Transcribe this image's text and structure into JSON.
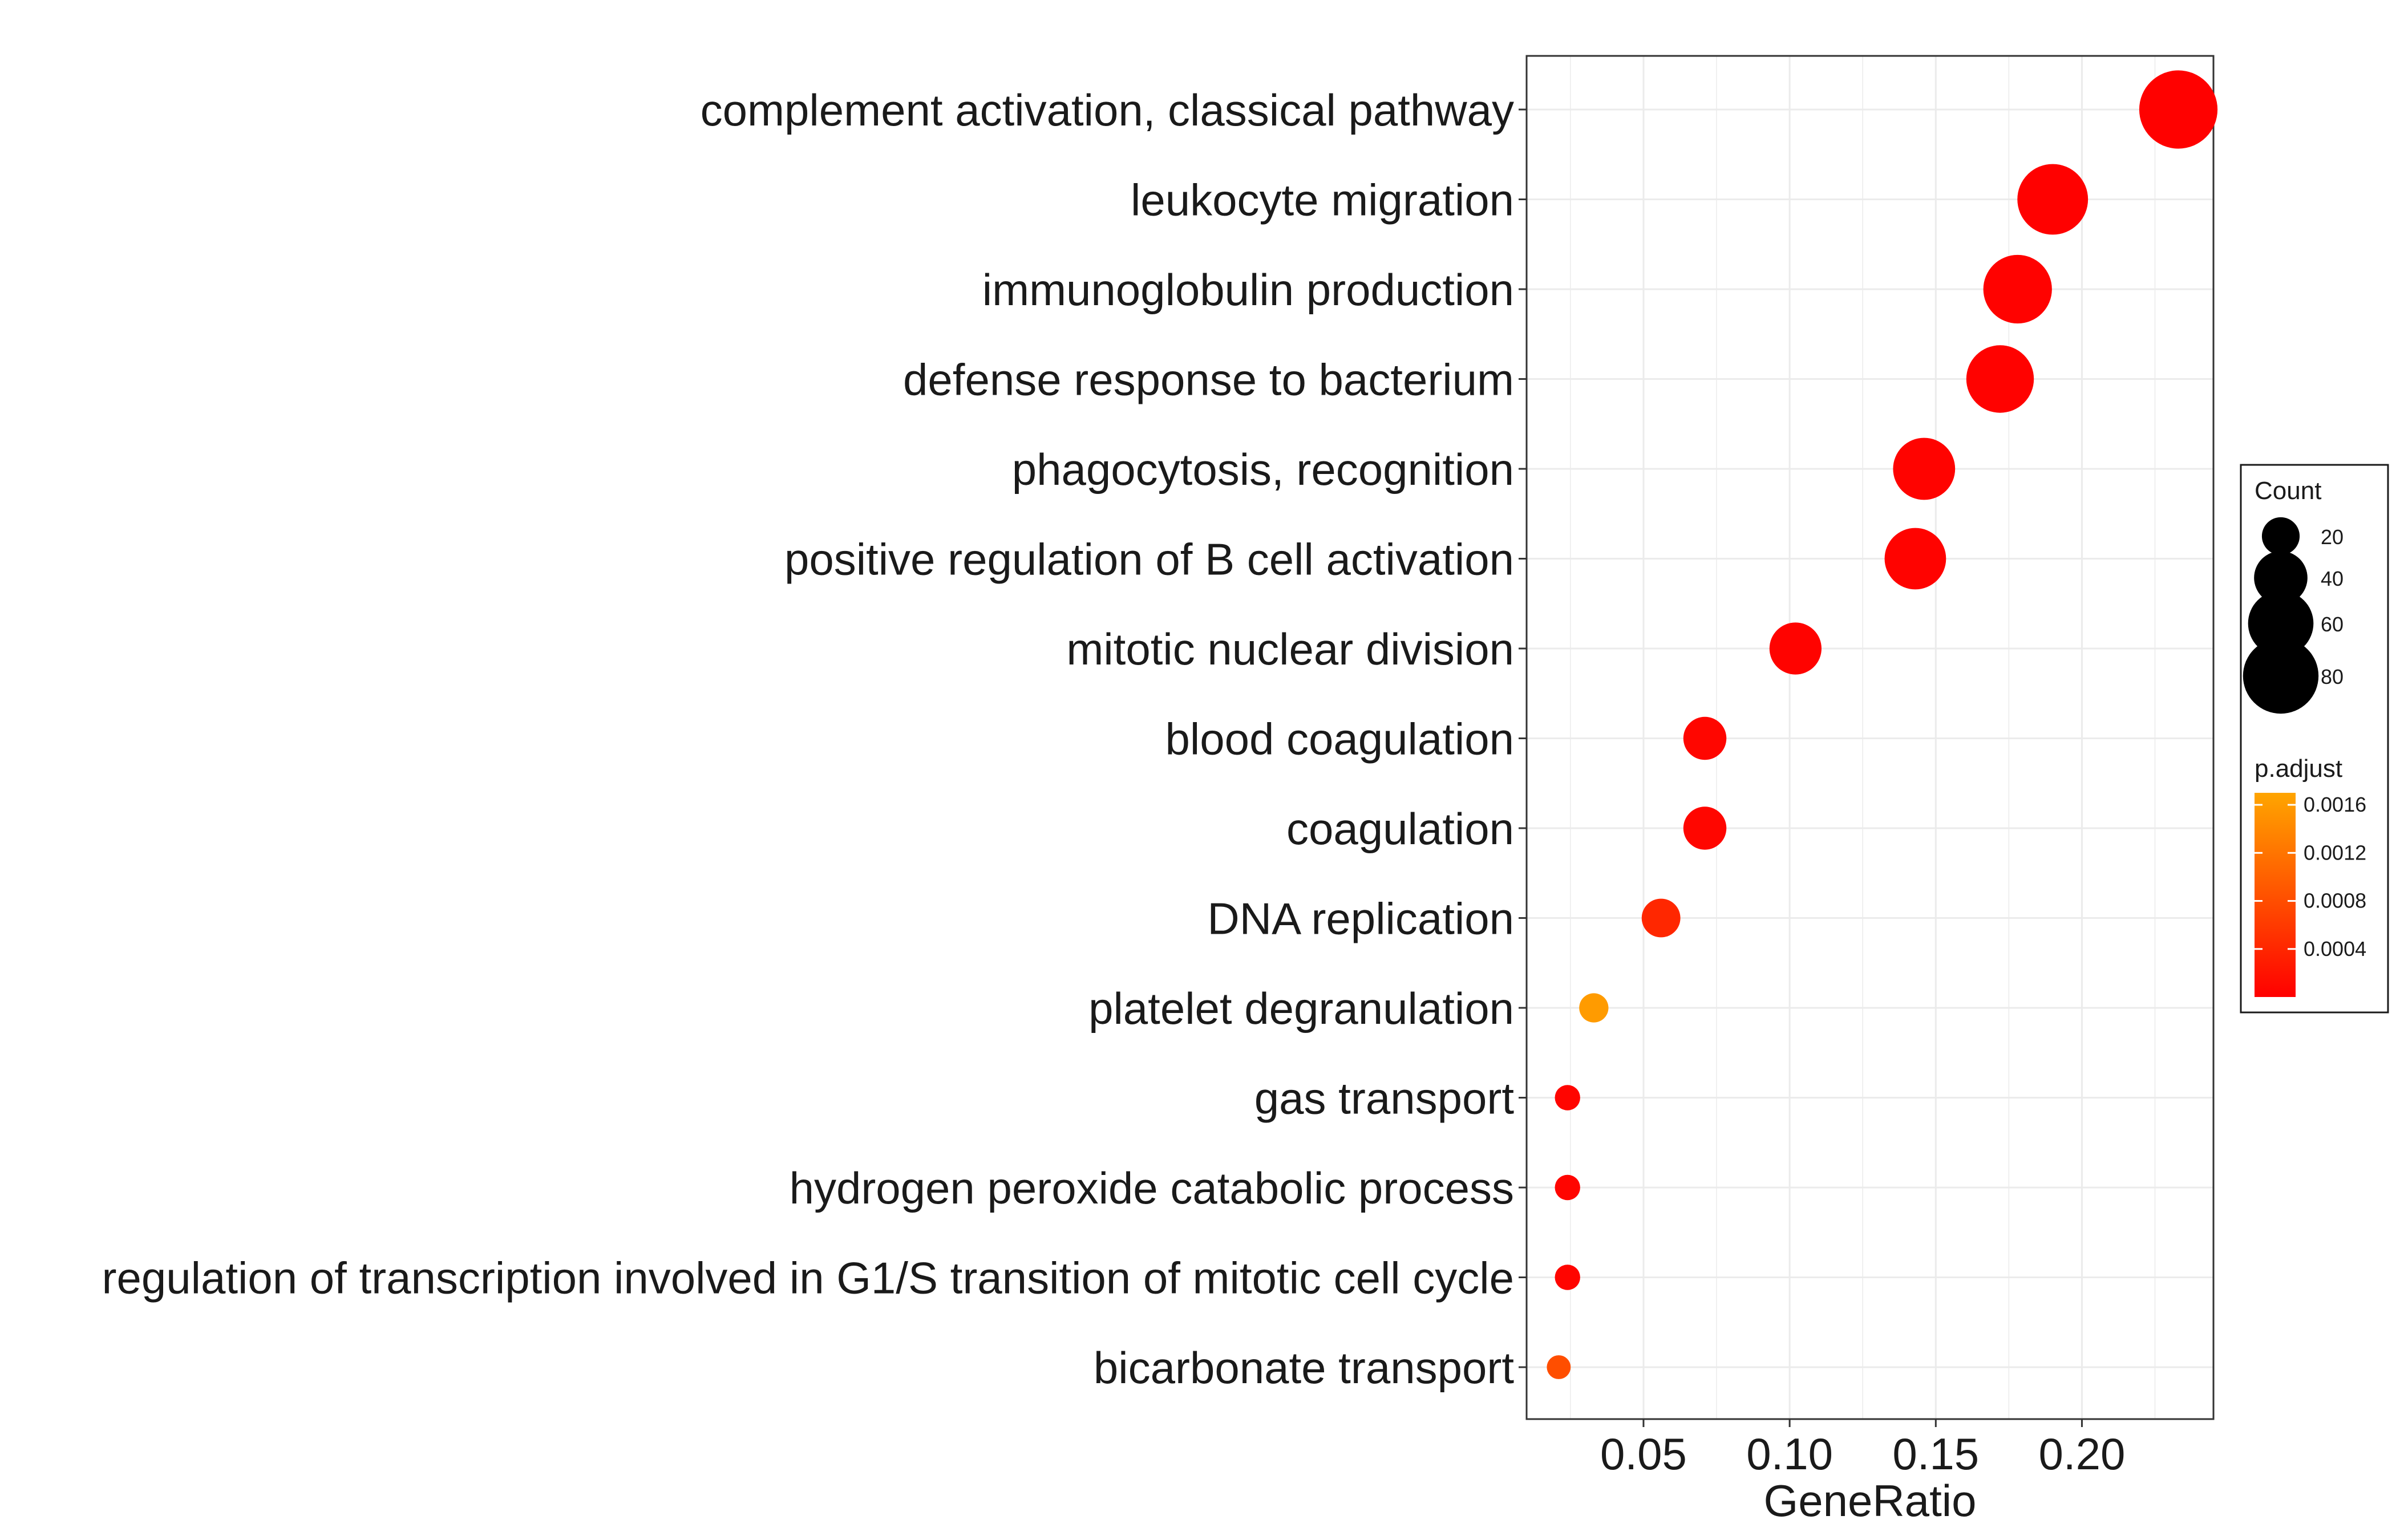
{
  "chart_data": {
    "type": "scatter",
    "xlabel": "GeneRatio",
    "ylabel": "",
    "xlim": [
      0.01,
      0.245
    ],
    "xticks": [
      0.05,
      0.1,
      0.15,
      0.2
    ],
    "xtick_labels": [
      "0.05",
      "0.10",
      "0.15",
      "0.20"
    ],
    "grid": true,
    "categories": [
      "complement activation, classical pathway",
      "leukocyte migration",
      "immunoglobulin production",
      "defense response to bacterium",
      "phagocytosis, recognition",
      "positive regulation of B cell activation",
      "mitotic nuclear division",
      "blood coagulation",
      "coagulation",
      "DNA replication",
      "platelet degranulation",
      "gas transport",
      "hydrogen peroxide catabolic process",
      "regulation of transcription involved in G1/S transition of mitotic cell cycle",
      "bicarbonate transport"
    ],
    "points": [
      {
        "term": "complement activation, classical pathway",
        "gene_ratio": 0.233,
        "count": 86,
        "p_adjust": 1e-05
      },
      {
        "term": "leukocyte migration",
        "gene_ratio": 0.19,
        "count": 70,
        "p_adjust": 1e-05
      },
      {
        "term": "immunoglobulin production",
        "gene_ratio": 0.178,
        "count": 66,
        "p_adjust": 2e-05
      },
      {
        "term": "defense response to bacterium",
        "gene_ratio": 0.172,
        "count": 64,
        "p_adjust": 2e-05
      },
      {
        "term": "phagocytosis, recognition",
        "gene_ratio": 0.146,
        "count": 54,
        "p_adjust": 3e-05
      },
      {
        "term": "positive regulation of B cell activation",
        "gene_ratio": 0.143,
        "count": 53,
        "p_adjust": 3e-05
      },
      {
        "term": "mitotic nuclear division",
        "gene_ratio": 0.102,
        "count": 38,
        "p_adjust": 3e-05
      },
      {
        "term": "blood coagulation",
        "gene_ratio": 0.071,
        "count": 26,
        "p_adjust": 6e-05
      },
      {
        "term": "coagulation",
        "gene_ratio": 0.071,
        "count": 26,
        "p_adjust": 6e-05
      },
      {
        "term": "DNA replication",
        "gene_ratio": 0.056,
        "count": 21,
        "p_adjust": 0.0004
      },
      {
        "term": "platelet degranulation",
        "gene_ratio": 0.033,
        "count": 12,
        "p_adjust": 0.0016
      },
      {
        "term": "gas transport",
        "gene_ratio": 0.024,
        "count": 9,
        "p_adjust": 5e-05
      },
      {
        "term": "hydrogen peroxide catabolic process",
        "gene_ratio": 0.024,
        "count": 9,
        "p_adjust": 5e-05
      },
      {
        "term": "regulation of transcription involved in G1/S transition of mitotic cell cycle",
        "gene_ratio": 0.024,
        "count": 9,
        "p_adjust": 5e-05
      },
      {
        "term": "bicarbonate transport",
        "gene_ratio": 0.021,
        "count": 8,
        "p_adjust": 0.0008
      }
    ],
    "legend_count": {
      "title": "Count",
      "values": [
        20,
        40,
        60,
        80
      ],
      "labels": [
        "20",
        "40",
        "60",
        "80"
      ]
    },
    "legend_color": {
      "title": "p.adjust",
      "range": [
        0.0,
        0.0017
      ],
      "ticks": [
        0.0016,
        0.0012,
        0.0008,
        0.0004
      ],
      "tick_labels": [
        "0.0016",
        "0.0012",
        "0.0008",
        "0.0004"
      ],
      "low_color": "#ff0000",
      "high_color": "#ffa500"
    },
    "legend_placement": "right"
  }
}
